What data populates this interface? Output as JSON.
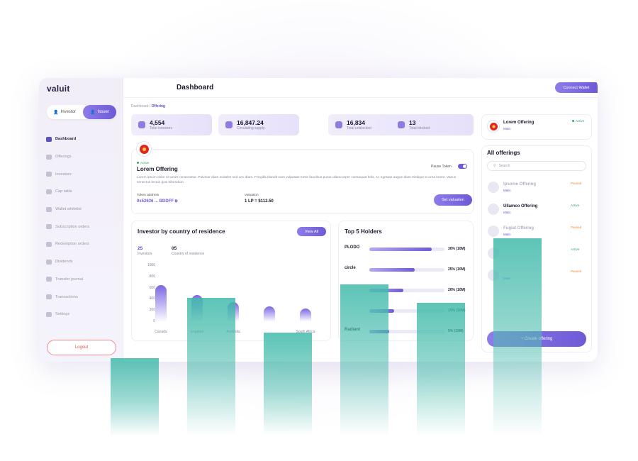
{
  "app": {
    "logo": "valuit"
  },
  "header": {
    "title": "Dashboard",
    "connect_wallet": "Connect Wallet"
  },
  "breadcrumb": {
    "root": "Dashboard",
    "sep": " / ",
    "current": "Offering"
  },
  "roles": {
    "investor": "Investor",
    "issuer": "Issuer"
  },
  "sidebar": {
    "items": [
      {
        "label": "Dashboard",
        "icon": "dashboard-icon",
        "active": true
      },
      {
        "label": "Offerings",
        "icon": "offerings-icon"
      },
      {
        "label": "Investors",
        "icon": "investors-icon"
      },
      {
        "label": "Cap table",
        "icon": "cap-table-icon"
      },
      {
        "label": "Wallet whitelist",
        "icon": "wallet-icon"
      },
      {
        "label": "Subscription orders",
        "icon": "subscription-icon"
      },
      {
        "label": "Redemption orders",
        "icon": "redemption-icon"
      },
      {
        "label": "Dividends",
        "icon": "dividends-icon"
      },
      {
        "label": "Transfer journal",
        "icon": "transfer-icon"
      },
      {
        "label": "Transactions",
        "icon": "transactions-icon"
      },
      {
        "label": "Settings",
        "icon": "settings-icon"
      }
    ],
    "logout": "Logout"
  },
  "stats": [
    {
      "value": "4,554",
      "label": "Total investors"
    },
    {
      "value": "16,847.24",
      "label": "Circulating supply"
    },
    {
      "value": "16,834",
      "label": "Total unblocked"
    },
    {
      "value": "13",
      "label": "Total blocked"
    }
  ],
  "offering": {
    "status": "Active",
    "name": "Lorem Offering",
    "pause_label": "Pause Token",
    "description": "Lorem ipsum dolor sit amet consectetur. Pulvinar diam sodales sed orci diam. Fringilla blandit nam vulputate tortor faucibus purus ullamcorper consequat felis. Ac egestas augue diam tristique in urna lorem. Varius senectus lectus quis bibendum.",
    "token_label": "Token address",
    "token_value": "0x52636 ... BDDFF",
    "valuation_label": "Valuation",
    "valuation_value": "1 LP = $112.50",
    "set_valuation": "Set valuation"
  },
  "investors_chart": {
    "title": "Investor by country of residence",
    "view_all": "View All",
    "investors_count": "25",
    "investors_label": "Investors",
    "countries_count": "05",
    "countries_label": "Country of residence",
    "y_ticks": [
      "1000",
      "800",
      "600",
      "400",
      "200",
      "0"
    ],
    "categories": [
      "Canada",
      "England",
      "Australia",
      "",
      "South Africa"
    ]
  },
  "chart_data": {
    "type": "bar",
    "categories": [
      "Canada",
      "England",
      "Australia",
      "",
      "South Africa"
    ],
    "values": [
      640,
      470,
      340,
      270,
      230
    ],
    "ylim": [
      0,
      1000
    ]
  },
  "holders": {
    "title": "Top 5 Holders",
    "items": [
      {
        "name": "PLODO",
        "pct": 0.83,
        "label": "30% (10M)"
      },
      {
        "name": "circle",
        "pct": 0.6,
        "label": "25% (10M)"
      },
      {
        "name": "",
        "pct": 0.45,
        "label": "20% (10M)"
      },
      {
        "name": "",
        "pct": 0.33,
        "label": "15% (10M)"
      },
      {
        "name": "Radiant",
        "pct": 0.26,
        "label": "5% (10M)"
      }
    ]
  },
  "top_offering": {
    "name": "Lorem Offering",
    "network": "Matic",
    "status": "Active"
  },
  "all_offerings": {
    "title": "All offerings",
    "search_placeholder": "Search",
    "items": [
      {
        "name": "Ipsome Offering",
        "network": "Matic",
        "status": "Paused",
        "faded": true
      },
      {
        "name": "Ullamco Offering",
        "network": "Matic",
        "status": "Active",
        "faded": false
      },
      {
        "name": "Fugiat Offering",
        "network": "Matic",
        "status": "Paused",
        "faded": true
      },
      {
        "name": "",
        "network": "",
        "status": "Active",
        "faded": true
      },
      {
        "name": "",
        "network": "Matic",
        "status": "Paused",
        "faded": true
      }
    ],
    "create": "+ Create offering"
  },
  "overlay_bars": [
    0.34,
    0.6,
    0.45,
    0.66,
    0.58,
    0.86
  ],
  "colors": {
    "accent": "#6d5bd6",
    "overlay": "#40baaa",
    "active": "#2ea56b",
    "paused": "#f08a2d"
  }
}
